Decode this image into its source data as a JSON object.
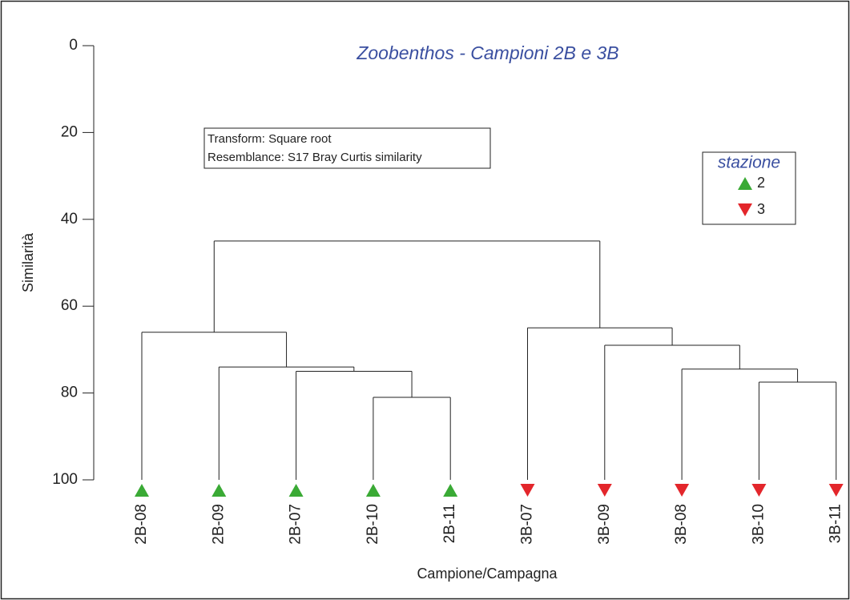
{
  "chart_data": {
    "type": "dendrogram",
    "title": "Zoobenthos - Campioni 2B e 3B",
    "y_label": "Similarità",
    "x_label": "Campione/Campagna",
    "annotations": [
      "Transform: Square root",
      "Resemblance: S17 Bray Curtis similarity"
    ],
    "ylim": [
      0,
      100
    ],
    "yticks": [
      0,
      20,
      40,
      60,
      80,
      100
    ],
    "legend": {
      "title": "stazione",
      "position": "upper right",
      "entries": [
        {
          "label": "2",
          "color": "#3aaa35",
          "marker": "triangle-up"
        },
        {
          "label": "3",
          "color": "#e3262b",
          "marker": "triangle-down"
        }
      ]
    },
    "tree": {
      "height": 45,
      "children": [
        {
          "height": 66,
          "children": [
            {
              "label": "2B-08",
              "group": "2"
            },
            {
              "height": 74,
              "children": [
                {
                  "label": "2B-09",
                  "group": "2"
                },
                {
                  "height": 75,
                  "children": [
                    {
                      "label": "2B-07",
                      "group": "2"
                    },
                    {
                      "height": 81,
                      "children": [
                        {
                          "label": "2B-10",
                          "group": "2"
                        },
                        {
                          "label": "2B-11",
                          "group": "2"
                        }
                      ]
                    }
                  ]
                }
              ]
            }
          ]
        },
        {
          "height": 65,
          "children": [
            {
              "label": "3B-07",
              "group": "3"
            },
            {
              "height": 69,
              "children": [
                {
                  "label": "3B-09",
                  "group": "3"
                },
                {
                  "height": 74.5,
                  "children": [
                    {
                      "label": "3B-08",
                      "group": "3"
                    },
                    {
                      "height": 77.5,
                      "children": [
                        {
                          "label": "3B-10",
                          "group": "3"
                        },
                        {
                          "label": "3B-11",
                          "group": "3"
                        }
                      ]
                    }
                  ]
                }
              ]
            }
          ]
        }
      ]
    }
  }
}
